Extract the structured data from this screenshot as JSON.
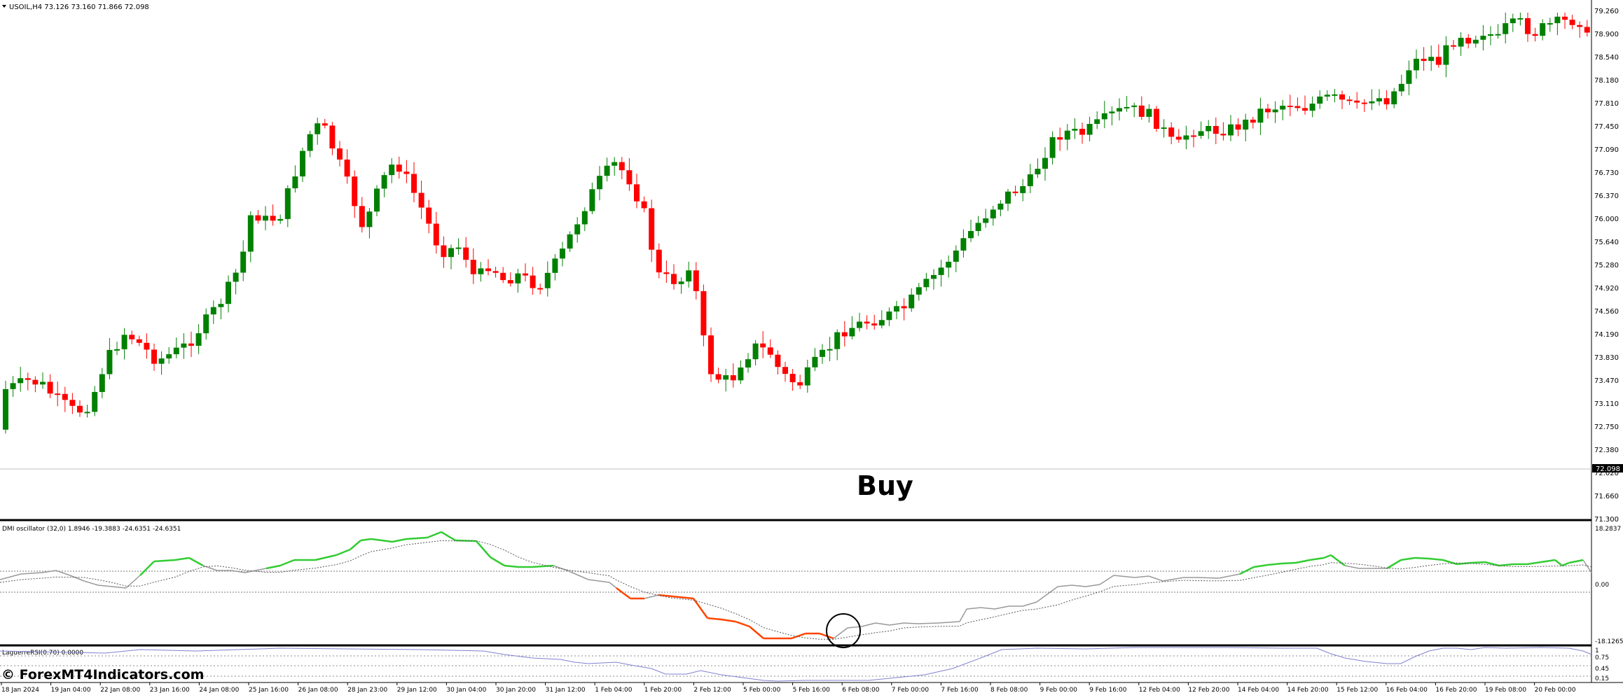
{
  "main_panel": {
    "header": "USOIL,H4  73.126 73.160 71.866 72.098",
    "current_price": "72.098",
    "price_ticks": [
      "79.260",
      "78.900",
      "78.540",
      "78.180",
      "77.810",
      "77.450",
      "77.090",
      "76.730",
      "76.370",
      "76.000",
      "75.640",
      "75.280",
      "74.920",
      "74.560",
      "74.190",
      "73.830",
      "73.470",
      "73.110",
      "72.750",
      "72.380",
      "72.020",
      "71.660",
      "71.300"
    ],
    "buy_label": "Buy",
    "up_color": "#008000",
    "down_color": "#ff0000"
  },
  "dmi_panel": {
    "header": "DMI oscillator (32,0) 1.8946 -19.3883 -24.6351 -24.6351",
    "ticks": [
      "18.2837",
      "0.00",
      "-18.1265"
    ],
    "colors": {
      "bull": "#33cc33",
      "bear": "#ff4400",
      "neutral": "#999999",
      "signal": "#555555"
    }
  },
  "laguerre_panel": {
    "header": "LaguerreRSI(0.70) 0.0000",
    "ticks": [
      "1",
      "0.75",
      "0.45",
      "0.15"
    ],
    "line_color": "#8080d0"
  },
  "time_labels": [
    "18 Jan 2024",
    "19 Jan 04:00",
    "22 Jan 08:00",
    "23 Jan 16:00",
    "24 Jan 08:00",
    "25 Jan 16:00",
    "26 Jan 08:00",
    "28 Jan 23:00",
    "29 Jan 12:00",
    "30 Jan 04:00",
    "30 Jan 20:00",
    "31 Jan 12:00",
    "1 Feb 04:00",
    "1 Feb 20:00",
    "2 Feb 12:00",
    "5 Feb 00:00",
    "5 Feb 16:00",
    "6 Feb 08:00",
    "7 Feb 00:00",
    "7 Feb 16:00",
    "8 Feb 08:00",
    "9 Feb 00:00",
    "9 Feb 16:00",
    "12 Feb 04:00",
    "12 Feb 20:00",
    "14 Feb 04:00",
    "14 Feb 20:00",
    "15 Feb 12:00",
    "16 Feb 04:00",
    "16 Feb 20:00",
    "19 Feb 08:00",
    "20 Feb 00:00"
  ],
  "watermark": "© ForexMT4Indicators.com"
}
